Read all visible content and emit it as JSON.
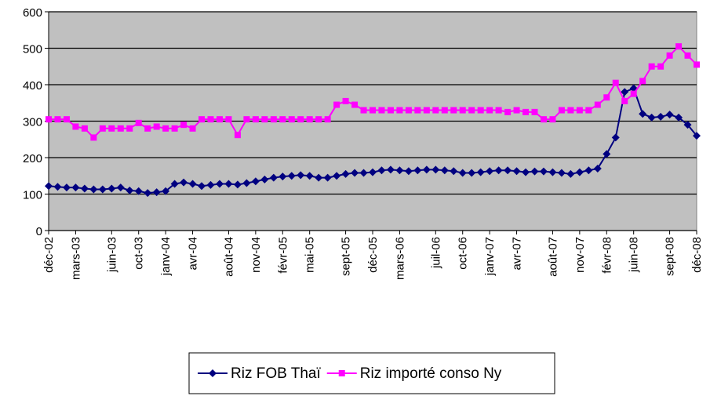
{
  "chart_data": {
    "type": "line",
    "categories": [
      "déc-02",
      null,
      null,
      "mars-03",
      null,
      null,
      null,
      "juin-03",
      null,
      null,
      "oct-03",
      null,
      null,
      "janv-04",
      null,
      null,
      "avr-04",
      null,
      null,
      null,
      "août-04",
      null,
      null,
      "nov-04",
      null,
      null,
      "févr-05",
      null,
      null,
      "mai-05",
      null,
      null,
      null,
      "sept-05",
      null,
      null,
      "déc-05",
      null,
      null,
      "mars-06",
      null,
      null,
      null,
      "juil-06",
      null,
      null,
      "oct-06",
      null,
      null,
      "janv-07",
      null,
      null,
      "avr-07",
      null,
      null,
      null,
      "août-07",
      null,
      null,
      "nov-07",
      null,
      null,
      "févr-08",
      null,
      null,
      "juin-08",
      null,
      null,
      null,
      "sept-08",
      null,
      null,
      "déc-08"
    ],
    "series": [
      {
        "name": "Riz FOB Thaï",
        "color": "#000080",
        "marker": "diamond",
        "values": [
          122,
          120,
          118,
          118,
          115,
          113,
          113,
          115,
          118,
          110,
          108,
          103,
          105,
          108,
          128,
          132,
          128,
          122,
          125,
          128,
          128,
          126,
          130,
          135,
          140,
          145,
          148,
          150,
          152,
          150,
          145,
          145,
          150,
          155,
          158,
          158,
          160,
          165,
          167,
          165,
          163,
          165,
          167,
          167,
          165,
          163,
          158,
          158,
          160,
          163,
          165,
          165,
          163,
          160,
          162,
          162,
          160,
          158,
          155,
          160,
          165,
          170,
          210,
          255,
          380,
          390,
          320,
          310,
          312,
          318,
          310,
          290,
          260
        ]
      },
      {
        "name": "Riz importé conso Ny",
        "color": "#ff00ff",
        "marker": "square",
        "values": [
          305,
          305,
          305,
          285,
          280,
          255,
          280,
          280,
          280,
          280,
          295,
          280,
          285,
          280,
          280,
          290,
          280,
          305,
          305,
          305,
          305,
          262,
          305,
          305,
          305,
          305,
          305,
          305,
          305,
          305,
          305,
          305,
          345,
          355,
          345,
          330,
          330,
          330,
          330,
          330,
          330,
          330,
          330,
          330,
          330,
          330,
          330,
          330,
          330,
          330,
          330,
          325,
          330,
          325,
          325,
          305,
          305,
          330,
          330,
          330,
          330,
          345,
          365,
          405,
          355,
          375,
          410,
          450,
          450,
          480,
          505,
          480,
          455
        ]
      }
    ],
    "ylim": [
      0,
      600
    ],
    "yticks": [
      0,
      100,
      200,
      300,
      400,
      500,
      600
    ],
    "grid": true,
    "plot_background": "#c0c0c0"
  }
}
